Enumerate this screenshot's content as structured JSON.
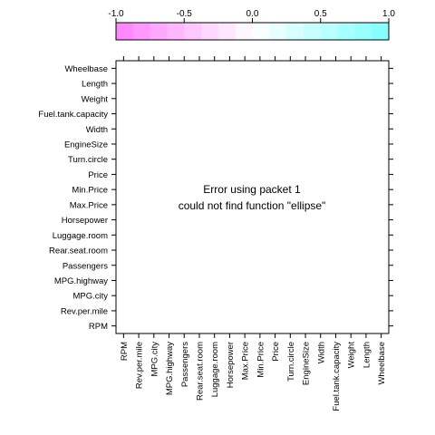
{
  "chart_data": {
    "type": "heatmap",
    "title": "",
    "xlabel": "",
    "ylabel": "",
    "x_categories": [
      "RPM",
      "Rev.per.mile",
      "MPG.city",
      "MPG.highway",
      "Passengers",
      "Rear.seat.room",
      "Luggage.room",
      "Horsepower",
      "Max.Price",
      "Min.Price",
      "Price",
      "Turn.circle",
      "EngineSize",
      "Width",
      "Fuel.tank.capacity",
      "Weight",
      "Length",
      "Wheelbase"
    ],
    "y_categories": [
      "Wheelbase",
      "Length",
      "Weight",
      "Fuel.tank.capacity",
      "Width",
      "EngineSize",
      "Turn.circle",
      "Price",
      "Min.Price",
      "Max.Price",
      "Horsepower",
      "Luggage.room",
      "Rear.seat.room",
      "Passengers",
      "MPG.highway",
      "MPG.city",
      "Rev.per.mile",
      "RPM"
    ],
    "values": [],
    "colorbar": {
      "range": [
        -1.0,
        1.0
      ],
      "ticks": [
        -1.0,
        -0.5,
        0.0,
        0.5,
        1.0
      ],
      "tick_labels": [
        "-1.0",
        "-0.5",
        "0.0",
        "0.5",
        "1.0"
      ],
      "low_color": "#ff80ff",
      "mid_color": "#ffffff",
      "high_color": "#80ffff",
      "steps": 16
    },
    "grid": false,
    "error_message": [
      "Error using packet 1",
      "could not find function \"ellipse\""
    ]
  }
}
